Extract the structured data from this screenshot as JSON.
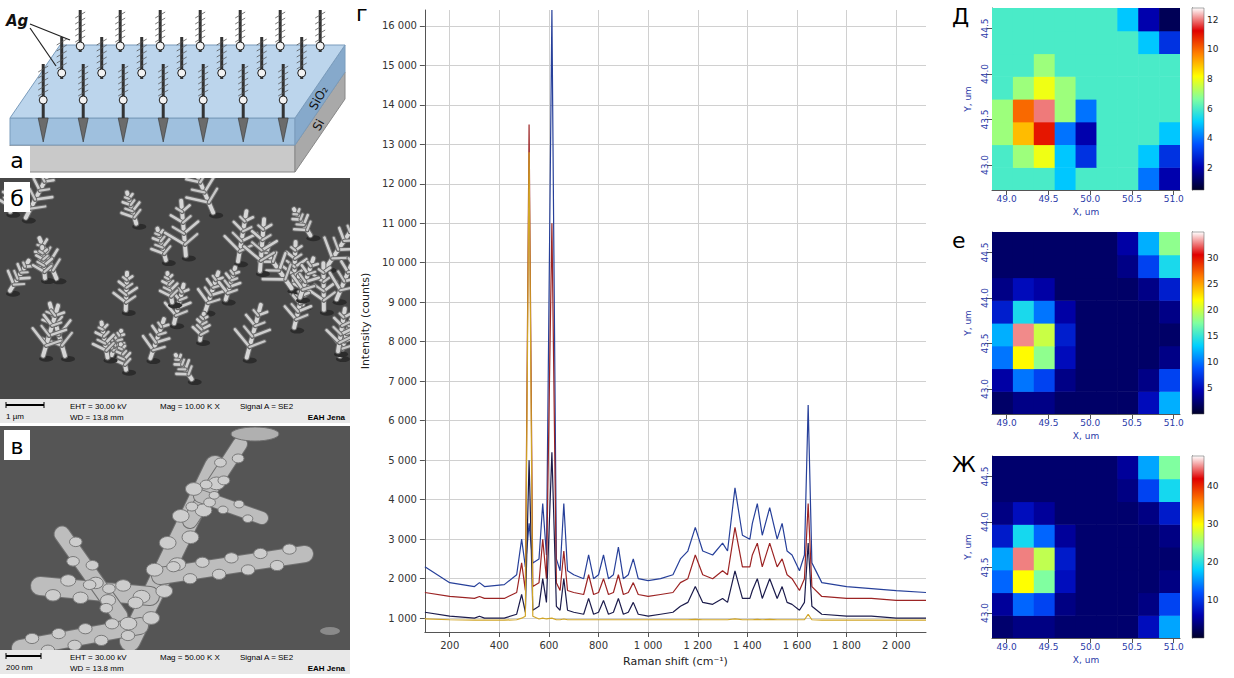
{
  "panels": {
    "a": {
      "letter": "а",
      "labels": {
        "ag": "Ag",
        "sio2": "SiO₂",
        "si": "Si"
      }
    },
    "b": {
      "letter": "б",
      "scale_bar": "1 µm",
      "info": [
        "EHT = 30.00 kV",
        "WD = 13.8 mm",
        "Mag = 10.00 K X",
        "Signal A = SE2"
      ],
      "brand": "EAH Jena"
    },
    "c": {
      "letter": "в",
      "scale_bar": "200 nm",
      "info": [
        "EHT = 30.00 kV",
        "WD = 13.8 mm",
        "Mag = 50.00 K X",
        "Signal A = SE2"
      ],
      "brand": "EAH Jena"
    }
  },
  "chart_data": [
    {
      "type": "line",
      "panel": "г",
      "xlabel": "Raman shift (cm⁻¹)",
      "ylabel": "Intensity (counts)",
      "grid": true,
      "x": [
        100,
        200,
        300,
        320,
        340,
        420,
        470,
        490,
        505,
        520,
        535,
        560,
        575,
        590,
        612,
        630,
        645,
        660,
        675,
        700,
        740,
        760,
        780,
        800,
        820,
        840,
        860,
        880,
        900,
        920,
        940,
        960,
        1000,
        1050,
        1100,
        1130,
        1160,
        1190,
        1220,
        1260,
        1300,
        1320,
        1350,
        1380,
        1410,
        1420,
        1440,
        1460,
        1490,
        1520,
        1540,
        1560,
        1580,
        1610,
        1630,
        1645,
        1660,
        1700,
        1800,
        1900,
        2000,
        2120
      ],
      "series": [
        {
          "color": "#27409a",
          "values": [
            2300,
            1900,
            1800,
            1900,
            1800,
            1850,
            2100,
            3000,
            2300,
            3400,
            2400,
            2500,
            3900,
            2600,
            16400,
            2500,
            2200,
            3900,
            2200,
            2100,
            2000,
            2600,
            2000,
            2100,
            2600,
            2000,
            2100,
            2800,
            2000,
            2100,
            2500,
            2000,
            1950,
            2000,
            2100,
            2500,
            2700,
            3300,
            2700,
            2600,
            2900,
            2700,
            4300,
            3100,
            3000,
            3400,
            3900,
            3100,
            3800,
            3000,
            3400,
            2700,
            2600,
            2200,
            2600,
            6400,
            2400,
            1900,
            1800,
            1750,
            1700,
            1650
          ]
        },
        {
          "color": "#9c2424",
          "values": [
            1650,
            1550,
            1500,
            1550,
            1500,
            1500,
            1650,
            2400,
            1700,
            13500,
            1800,
            1900,
            3000,
            2000,
            11000,
            1900,
            1700,
            2700,
            1700,
            1650,
            1600,
            2100,
            1600,
            1650,
            2000,
            1600,
            1650,
            2100,
            1600,
            1650,
            1900,
            1600,
            1550,
            1600,
            1650,
            1900,
            2000,
            2600,
            2100,
            2000,
            2200,
            2100,
            3300,
            2300,
            2300,
            2600,
            2900,
            2300,
            2900,
            2300,
            2500,
            2100,
            2000,
            1700,
            2000,
            3900,
            1800,
            1550,
            1500,
            1500,
            1450,
            1450
          ]
        },
        {
          "color": "#1c1c4c",
          "values": [
            1150,
            1050,
            1000,
            1050,
            1000,
            1000,
            1100,
            1600,
            1150,
            5000,
            1200,
            1300,
            2000,
            1400,
            5200,
            1300,
            1200,
            2000,
            1200,
            1150,
            1100,
            1500,
            1100,
            1150,
            1450,
            1100,
            1150,
            1500,
            1100,
            1150,
            1400,
            1100,
            1050,
            1100,
            1150,
            1300,
            1400,
            1800,
            1400,
            1350,
            1500,
            1400,
            2200,
            1500,
            1500,
            1700,
            2000,
            1500,
            2000,
            1500,
            1800,
            1400,
            1350,
            1200,
            1400,
            2900,
            1300,
            1100,
            1050,
            1050,
            1000,
            1000
          ]
        },
        {
          "color": "#d1a526",
          "values": [
            980,
            960,
            950,
            950,
            950,
            950,
            960,
            1000,
            1050,
            12800,
            1050,
            980,
            1000,
            980,
            1000,
            960,
            960,
            980,
            960,
            960,
            960,
            960,
            960,
            960,
            960,
            960,
            960,
            960,
            960,
            960,
            960,
            960,
            960,
            960,
            960,
            960,
            960,
            970,
            960,
            960,
            960,
            960,
            980,
            960,
            960,
            960,
            970,
            960,
            970,
            960,
            960,
            960,
            960,
            960,
            960,
            1100,
            960,
            950,
            950,
            950,
            950,
            950
          ]
        }
      ],
      "xlim": [
        100,
        2120
      ],
      "xticks": [
        200,
        400,
        600,
        800,
        {
          "value": 1000,
          "label": "1 000"
        },
        {
          "value": 1200,
          "label": "1 200"
        },
        {
          "value": 1400,
          "label": "1 400"
        },
        {
          "value": 1600,
          "label": "1 600"
        },
        {
          "value": 1800,
          "label": "1 800"
        },
        {
          "value": 2000,
          "label": "2 000"
        }
      ],
      "ylim": [
        650,
        16400
      ],
      "yticks": [
        {
          "value": 1000,
          "label": "1 000"
        },
        {
          "value": 2000,
          "label": "2 000"
        },
        {
          "value": 3000,
          "label": "3 000"
        },
        {
          "value": 4000,
          "label": "4 000"
        },
        {
          "value": 5000,
          "label": "5 000"
        },
        {
          "value": 6000,
          "label": "6 000"
        },
        {
          "value": 7000,
          "label": "7 000"
        },
        {
          "value": 8000,
          "label": "8 000"
        },
        {
          "value": 9000,
          "label": "9 000"
        },
        {
          "value": 10000,
          "label": "10 000"
        },
        {
          "value": 11000,
          "label": "11 000"
        },
        {
          "value": 12000,
          "label": "12 000"
        },
        {
          "value": 13000,
          "label": "13 000"
        },
        {
          "value": 14000,
          "label": "14 000"
        },
        {
          "value": 15000,
          "label": "15 000"
        },
        {
          "value": 16000,
          "label": "16 000"
        }
      ]
    },
    {
      "type": "heatmap",
      "panel": "Д",
      "xlabel": "X, um",
      "ylabel": "Y, um",
      "x": [
        48.95,
        49.2,
        49.45,
        49.7,
        49.95,
        50.2,
        50.45,
        50.7,
        50.95
      ],
      "y": [
        42.85,
        43.1,
        43.35,
        43.6,
        43.85,
        44.1,
        44.35,
        44.6
      ],
      "values": [
        [
          6,
          6,
          6,
          5,
          6,
          6,
          6,
          4,
          2
        ],
        [
          6,
          7,
          8,
          5,
          3,
          6,
          6,
          5,
          3
        ],
        [
          7,
          9,
          11,
          4,
          2,
          6,
          6,
          6,
          5
        ],
        [
          7,
          10,
          12,
          7,
          4,
          6,
          6,
          6,
          6
        ],
        [
          6,
          7,
          8,
          7,
          6,
          6,
          6,
          6,
          6
        ],
        [
          6,
          6,
          7,
          6,
          6,
          6,
          6,
          6,
          6
        ],
        [
          6,
          6,
          6,
          6,
          6,
          6,
          6,
          5,
          3
        ],
        [
          6,
          6,
          6,
          6,
          6,
          6,
          5,
          2,
          1
        ]
      ],
      "xlim": [
        48.825,
        51.075
      ],
      "ylim": [
        42.725,
        44.725
      ],
      "xticks": [
        {
          "value": 49,
          "label": "49.0"
        },
        49.5,
        {
          "value": 50,
          "label": "50.0"
        },
        50.5,
        {
          "value": 51,
          "label": "51.0"
        }
      ],
      "yticks": [
        {
          "value": 43,
          "label": "43.0"
        },
        43.5,
        {
          "value": 44,
          "label": "44.0"
        },
        44.5
      ],
      "colorbar": {
        "range": [
          0.5,
          12.8
        ],
        "ticks": [
          2,
          4,
          6,
          8,
          10,
          12
        ]
      }
    },
    {
      "type": "heatmap",
      "panel": "е",
      "xlabel": "X, um",
      "ylabel": "Y, um",
      "x": [
        48.95,
        49.2,
        49.45,
        49.7,
        49.95,
        50.2,
        50.45,
        50.7,
        50.95
      ],
      "y": [
        42.85,
        43.1,
        43.35,
        43.6,
        43.85,
        44.1,
        44.35,
        44.6
      ],
      "values": [
        [
          2,
          3,
          3,
          2,
          2,
          2,
          2,
          5,
          12
        ],
        [
          4,
          10,
          8,
          3,
          2,
          2,
          2,
          3,
          8
        ],
        [
          10,
          22,
          18,
          5,
          2,
          2,
          2,
          2,
          3
        ],
        [
          12,
          33,
          20,
          6,
          2,
          2,
          2,
          2,
          2
        ],
        [
          6,
          14,
          10,
          4,
          2,
          2,
          2,
          2,
          3
        ],
        [
          3,
          5,
          4,
          2,
          2,
          2,
          2,
          3,
          6
        ],
        [
          2,
          2,
          2,
          2,
          2,
          2,
          3,
          8,
          14
        ],
        [
          2,
          2,
          2,
          2,
          2,
          2,
          4,
          12,
          18
        ]
      ],
      "xlim": [
        48.825,
        51.075
      ],
      "ylim": [
        42.725,
        44.725
      ],
      "xticks": [
        {
          "value": 49,
          "label": "49.0"
        },
        49.5,
        {
          "value": 50,
          "label": "50.0"
        },
        50.5,
        {
          "value": 51,
          "label": "51.0"
        }
      ],
      "yticks": [
        {
          "value": 43,
          "label": "43.0"
        },
        43.5,
        {
          "value": 44,
          "label": "44.0"
        },
        44.5
      ],
      "colorbar": {
        "range": [
          0,
          35
        ],
        "ticks": [
          5,
          10,
          15,
          20,
          25,
          30
        ]
      }
    },
    {
      "type": "heatmap",
      "panel": "Ж",
      "xlabel": "X, um",
      "ylabel": "Y, um",
      "x": [
        48.95,
        49.2,
        49.45,
        49.7,
        49.95,
        50.2,
        50.45,
        50.7,
        50.95
      ],
      "y": [
        42.85,
        43.1,
        43.35,
        43.6,
        43.85,
        44.1,
        44.35,
        44.6
      ],
      "values": [
        [
          3,
          4,
          4,
          3,
          3,
          3,
          3,
          7,
          16
        ],
        [
          5,
          13,
          11,
          4,
          3,
          3,
          3,
          4,
          11
        ],
        [
          13,
          30,
          24,
          7,
          3,
          3,
          3,
          3,
          4
        ],
        [
          16,
          45,
          27,
          8,
          3,
          3,
          3,
          3,
          3
        ],
        [
          8,
          19,
          13,
          5,
          3,
          3,
          3,
          3,
          4
        ],
        [
          4,
          7,
          5,
          3,
          3,
          3,
          3,
          4,
          8
        ],
        [
          3,
          3,
          3,
          3,
          3,
          3,
          4,
          11,
          19
        ],
        [
          3,
          3,
          3,
          3,
          3,
          3,
          5,
          16,
          24
        ]
      ],
      "xlim": [
        48.825,
        51.075
      ],
      "ylim": [
        42.725,
        44.725
      ],
      "xticks": [
        {
          "value": 49,
          "label": "49.0"
        },
        49.5,
        {
          "value": 50,
          "label": "50.0"
        },
        50.5,
        {
          "value": 51,
          "label": "51.0"
        }
      ],
      "yticks": [
        {
          "value": 43,
          "label": "43.0"
        },
        43.5,
        {
          "value": 44,
          "label": "44.0"
        },
        44.5
      ],
      "colorbar": {
        "range": [
          0,
          48
        ],
        "ticks": [
          10,
          20,
          30,
          40
        ]
      }
    }
  ]
}
